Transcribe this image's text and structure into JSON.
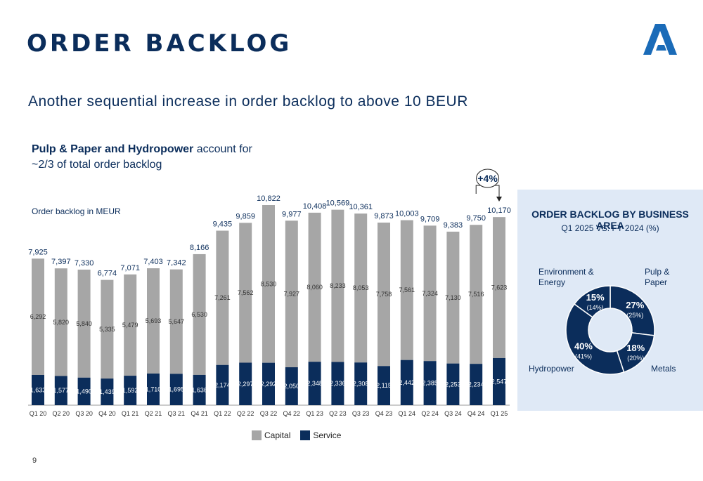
{
  "header": {
    "title": "ORDER BACKLOG",
    "subtitle": "Another sequential increase in order backlog to above 10 BEUR",
    "note_bold": "Pulp & Paper and Hydropower",
    "note_rest": " account for ~2/3 of total order backlog",
    "unit_label": "Order backlog in MEUR",
    "page_number": "9"
  },
  "logo": {
    "name": "andritz-logo",
    "color": "#1a6bb8"
  },
  "colors": {
    "capital": "#a6a6a6",
    "service": "#0b2d5b",
    "panel_bg": "#dfe9f6"
  },
  "chart_data": [
    {
      "type": "bar",
      "stacked": true,
      "categories": [
        "Q1 20",
        "Q2 20",
        "Q3 20",
        "Q4 20",
        "Q1 21",
        "Q2 21",
        "Q3 21",
        "Q4 21",
        "Q1 22",
        "Q2 22",
        "Q3 22",
        "Q4 22",
        "Q1 23",
        "Q2 23",
        "Q3 23",
        "Q4 23",
        "Q1 24",
        "Q2 24",
        "Q3 24",
        "Q4 24",
        "Q1 25"
      ],
      "series": [
        {
          "name": "Service",
          "values": [
            1633,
            1577,
            1490,
            1439,
            1592,
            1710,
            1695,
            1636,
            2174,
            2297,
            2292,
            2050,
            2348,
            2336,
            2308,
            2115,
            2442,
            2385,
            2253,
            2234,
            2547
          ]
        },
        {
          "name": "Capital",
          "values": [
            6292,
            5820,
            5840,
            5335,
            5479,
            5693,
            5647,
            6530,
            7261,
            7562,
            8530,
            7927,
            8060,
            8233,
            8053,
            7758,
            7561,
            7324,
            7130,
            7516,
            7623
          ]
        }
      ],
      "totals": [
        7925,
        7397,
        7330,
        6774,
        7071,
        7403,
        7342,
        8166,
        9435,
        9859,
        10822,
        9977,
        10408,
        10569,
        10361,
        9873,
        10003,
        9709,
        9383,
        9750,
        10170
      ],
      "annotation": "+4%",
      "ylabel": "Order backlog in MEUR",
      "ylim": [
        0,
        11000
      ],
      "legend": [
        "Capital",
        "Service"
      ],
      "legend_position": "bottom"
    },
    {
      "type": "pie",
      "donut": true,
      "title": "ORDER BACKLOG BY BUSINESS AREA",
      "subtitle": "Q1 2025 VS. FY 2024 (%)",
      "slices": [
        {
          "name": "Pulp & Paper",
          "value": 27,
          "label": "27%",
          "prior": "(25%)",
          "color": "#0b2d5b"
        },
        {
          "name": "Metals",
          "value": 18,
          "label": "18%",
          "prior": "(20%)",
          "color": "#0b2d5b"
        },
        {
          "name": "Hydropower",
          "value": 40,
          "label": "40%",
          "prior": "(41%)",
          "color": "#0b2d5b"
        },
        {
          "name": "Environment & Energy",
          "value": 15,
          "label": "15%",
          "prior": "(14%)",
          "color": "#0b2d5b"
        }
      ]
    }
  ]
}
